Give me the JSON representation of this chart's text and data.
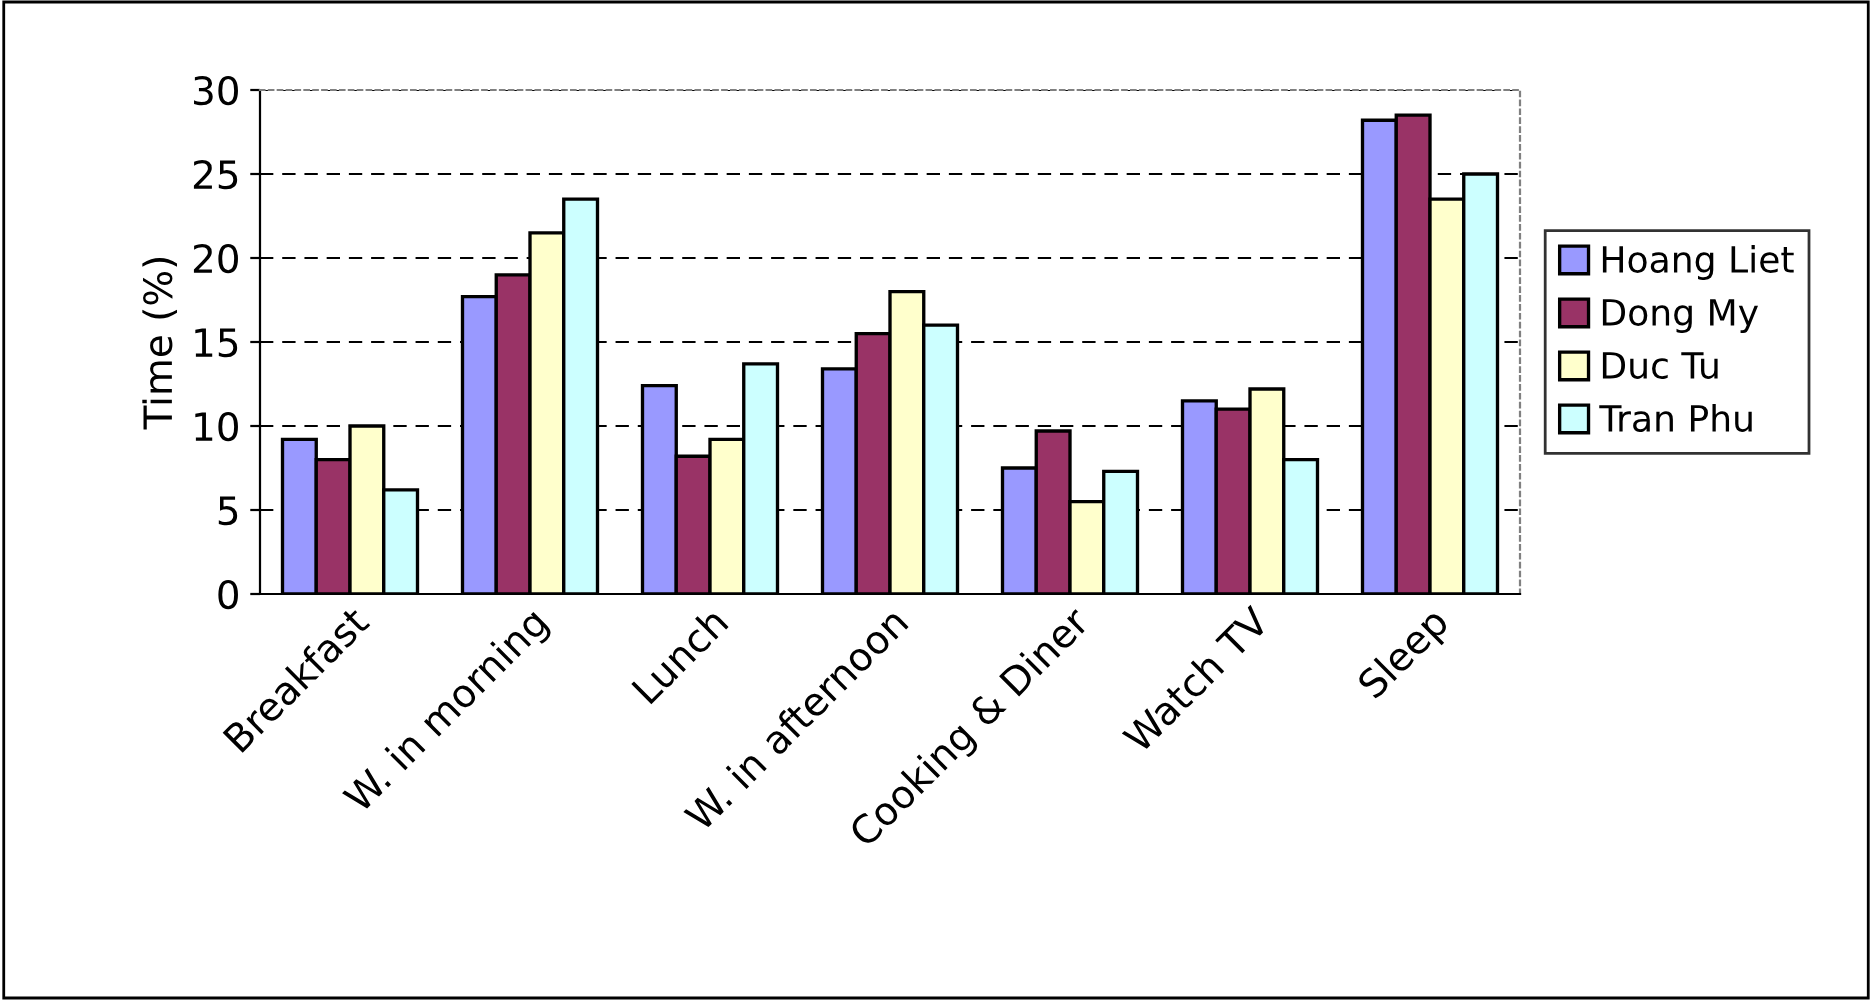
{
  "chart_data": {
    "type": "bar",
    "ylabel": "Time (%)",
    "categories": [
      "Breakfast",
      "W. in morning",
      "Lunch",
      "W. in afternoon",
      "Cooking & Diner",
      "Watch TV",
      "Sleep"
    ],
    "series": [
      {
        "name": "Hoang Liet",
        "color": "#9999ff",
        "values": [
          9.2,
          17.7,
          12.4,
          13.4,
          7.5,
          11.5,
          28.2
        ]
      },
      {
        "name": "Dong My",
        "color": "#993366",
        "values": [
          8.0,
          19.0,
          8.2,
          15.5,
          9.7,
          11.0,
          28.5
        ]
      },
      {
        "name": "Duc Tu",
        "color": "#ffffcc",
        "values": [
          10.0,
          21.5,
          9.2,
          18.0,
          5.5,
          12.2,
          23.5
        ]
      },
      {
        "name": "Tran Phu",
        "color": "#ccffff",
        "values": [
          6.2,
          23.5,
          13.7,
          16.0,
          7.3,
          8.0,
          25.0
        ]
      }
    ],
    "ylim": [
      0,
      30
    ],
    "yticks": [
      0,
      5,
      10,
      15,
      20,
      25,
      30
    ],
    "grid": "y",
    "legend": "right"
  }
}
